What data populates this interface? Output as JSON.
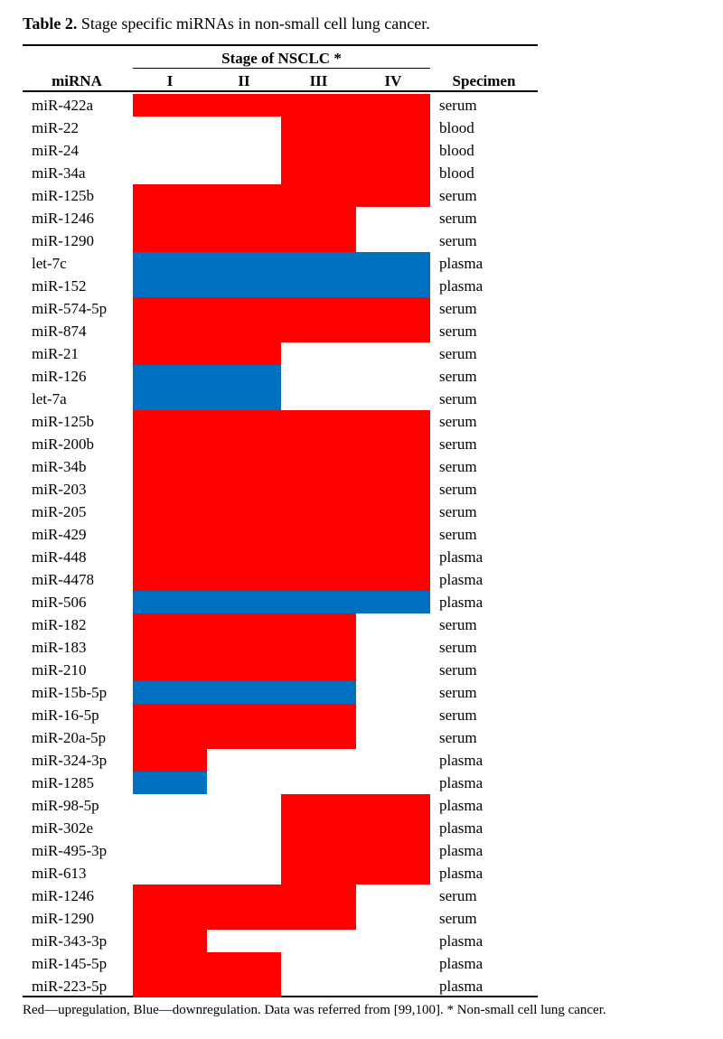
{
  "caption": {
    "label": "Table 2.",
    "text": "Stage specific miRNAs in non-small cell lung cancer."
  },
  "table": {
    "group_header": "Stage of NSCLC *",
    "columns": [
      "miRNA",
      "I",
      "II",
      "III",
      "IV",
      "Specimen"
    ],
    "rows": [
      {
        "mirna": "miR-422a",
        "stages": [
          "#ff0000",
          "#ff0000",
          "#ff0000",
          "#ff0000"
        ],
        "specimen": "serum"
      },
      {
        "mirna": "miR-22",
        "stages": [
          null,
          null,
          "#ff0000",
          "#ff0000"
        ],
        "specimen": "blood"
      },
      {
        "mirna": "miR-24",
        "stages": [
          null,
          null,
          "#ff0000",
          "#ff0000"
        ],
        "specimen": "blood"
      },
      {
        "mirna": "miR-34a",
        "stages": [
          null,
          null,
          "#ff0000",
          "#ff0000"
        ],
        "specimen": "blood"
      },
      {
        "mirna": "miR-125b",
        "stages": [
          "#ff0000",
          "#ff0000",
          "#ff0000",
          "#ff0000"
        ],
        "specimen": "serum"
      },
      {
        "mirna": "miR-1246",
        "stages": [
          "#ff0000",
          "#ff0000",
          "#ff0000",
          null
        ],
        "specimen": "serum"
      },
      {
        "mirna": "miR-1290",
        "stages": [
          "#ff0000",
          "#ff0000",
          "#ff0000",
          null
        ],
        "specimen": "serum"
      },
      {
        "mirna": "let-7c",
        "stages": [
          "#0070c0",
          "#0070c0",
          "#0070c0",
          "#0070c0"
        ],
        "specimen": "plasma"
      },
      {
        "mirna": "miR-152",
        "stages": [
          "#0070c0",
          "#0070c0",
          "#0070c0",
          "#0070c0"
        ],
        "specimen": "plasma"
      },
      {
        "mirna": "miR-574-5p",
        "stages": [
          "#ff0000",
          "#ff0000",
          "#ff0000",
          "#ff0000"
        ],
        "specimen": "serum"
      },
      {
        "mirna": "miR-874",
        "stages": [
          "#ff0000",
          "#ff0000",
          "#ff0000",
          "#ff0000"
        ],
        "specimen": "serum"
      },
      {
        "mirna": "miR-21",
        "stages": [
          "#ff0000",
          "#ff0000",
          null,
          null
        ],
        "specimen": "serum"
      },
      {
        "mirna": "miR-126",
        "stages": [
          "#0070c0",
          "#0070c0",
          null,
          null
        ],
        "specimen": "serum"
      },
      {
        "mirna": "let-7a",
        "stages": [
          "#0070c0",
          "#0070c0",
          null,
          null
        ],
        "specimen": "serum"
      },
      {
        "mirna": "miR-125b",
        "stages": [
          "#ff0000",
          "#ff0000",
          "#ff0000",
          "#ff0000"
        ],
        "specimen": "serum"
      },
      {
        "mirna": "miR-200b",
        "stages": [
          "#ff0000",
          "#ff0000",
          "#ff0000",
          "#ff0000"
        ],
        "specimen": "serum"
      },
      {
        "mirna": "miR-34b",
        "stages": [
          "#ff0000",
          "#ff0000",
          "#ff0000",
          "#ff0000"
        ],
        "specimen": "serum"
      },
      {
        "mirna": "miR-203",
        "stages": [
          "#ff0000",
          "#ff0000",
          "#ff0000",
          "#ff0000"
        ],
        "specimen": "serum"
      },
      {
        "mirna": "miR-205",
        "stages": [
          "#ff0000",
          "#ff0000",
          "#ff0000",
          "#ff0000"
        ],
        "specimen": "serum"
      },
      {
        "mirna": "miR-429",
        "stages": [
          "#ff0000",
          "#ff0000",
          "#ff0000",
          "#ff0000"
        ],
        "specimen": "serum"
      },
      {
        "mirna": "miR-448",
        "stages": [
          "#ff0000",
          "#ff0000",
          "#ff0000",
          "#ff0000"
        ],
        "specimen": "plasma"
      },
      {
        "mirna": "miR-4478",
        "stages": [
          "#ff0000",
          "#ff0000",
          "#ff0000",
          "#ff0000"
        ],
        "specimen": "plasma"
      },
      {
        "mirna": "miR-506",
        "stages": [
          "#0070c0",
          "#0070c0",
          "#0070c0",
          "#0070c0"
        ],
        "specimen": "plasma"
      },
      {
        "mirna": "miR-182",
        "stages": [
          "#ff0000",
          "#ff0000",
          "#ff0000",
          null
        ],
        "specimen": "serum"
      },
      {
        "mirna": "miR-183",
        "stages": [
          "#ff0000",
          "#ff0000",
          "#ff0000",
          null
        ],
        "specimen": "serum"
      },
      {
        "mirna": "miR-210",
        "stages": [
          "#ff0000",
          "#ff0000",
          "#ff0000",
          null
        ],
        "specimen": "serum"
      },
      {
        "mirna": "miR-15b-5p",
        "stages": [
          "#0070c0",
          "#0070c0",
          "#0070c0",
          null
        ],
        "specimen": "serum"
      },
      {
        "mirna": "miR-16-5p",
        "stages": [
          "#ff0000",
          "#ff0000",
          "#ff0000",
          null
        ],
        "specimen": "serum"
      },
      {
        "mirna": "miR-20a-5p",
        "stages": [
          "#ff0000",
          "#ff0000",
          "#ff0000",
          null
        ],
        "specimen": "serum"
      },
      {
        "mirna": "miR-324-3p",
        "stages": [
          "#ff0000",
          null,
          null,
          null
        ],
        "specimen": "plasma"
      },
      {
        "mirna": "miR-1285",
        "stages": [
          "#0070c0",
          null,
          null,
          null
        ],
        "specimen": "plasma"
      },
      {
        "mirna": "miR-98-5p",
        "stages": [
          null,
          null,
          "#ff0000",
          "#ff0000"
        ],
        "specimen": "plasma"
      },
      {
        "mirna": "miR-302e",
        "stages": [
          null,
          null,
          "#ff0000",
          "#ff0000"
        ],
        "specimen": "plasma"
      },
      {
        "mirna": "miR-495-3p",
        "stages": [
          null,
          null,
          "#ff0000",
          "#ff0000"
        ],
        "specimen": "plasma"
      },
      {
        "mirna": "miR-613",
        "stages": [
          null,
          null,
          "#ff0000",
          "#ff0000"
        ],
        "specimen": "plasma"
      },
      {
        "mirna": "miR-1246",
        "stages": [
          "#ff0000",
          "#ff0000",
          "#ff0000",
          null
        ],
        "specimen": "serum"
      },
      {
        "mirna": "miR-1290",
        "stages": [
          "#ff0000",
          "#ff0000",
          "#ff0000",
          null
        ],
        "specimen": "serum"
      },
      {
        "mirna": "miR-343-3p",
        "stages": [
          "#ff0000",
          null,
          null,
          null
        ],
        "specimen": "plasma"
      },
      {
        "mirna": "miR-145-5p",
        "stages": [
          "#ff0000",
          "#ff0000",
          null,
          null
        ],
        "specimen": "plasma"
      },
      {
        "mirna": "miR-223-5p",
        "stages": [
          "#ff0000",
          "#ff0000",
          null,
          null
        ],
        "specimen": "plasma"
      }
    ]
  },
  "footnote": "Red—upregulation, Blue—downregulation. Data was referred from [99,100]. * Non-small cell lung cancer."
}
